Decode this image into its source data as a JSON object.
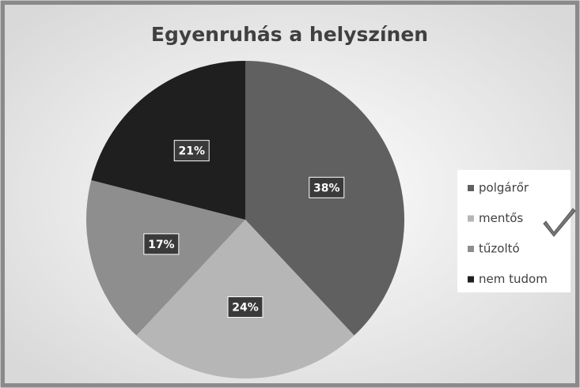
{
  "chart_data": {
    "type": "pie",
    "title": "Egyenruhás a helyszínen",
    "categories": [
      "polgárőr",
      "mentős",
      "tűzoltó",
      "nem tudom"
    ],
    "values": [
      38,
      24,
      17,
      21
    ],
    "value_labels": [
      "38%",
      "24%",
      "17%",
      "21%"
    ],
    "colors": [
      "#606060",
      "#b6b6b6",
      "#8e8e8e",
      "#1f1f1f"
    ],
    "legend": "right"
  }
}
